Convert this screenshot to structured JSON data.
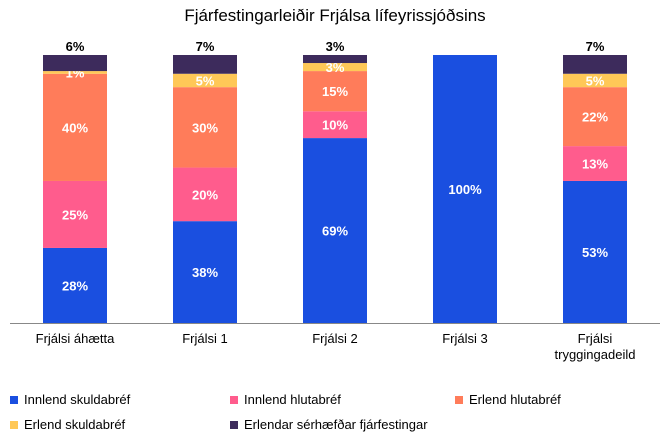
{
  "chart_data": {
    "type": "bar",
    "stacked": true,
    "percent_stacked": true,
    "title": "Fjárfestingarleiðir Frjálsa lífeyrissjóðsins",
    "categories": [
      "Frjálsi áhætta",
      "Frjálsi 1",
      "Frjálsi 2",
      "Frjálsi 3",
      "Frjálsi tryggingadeild"
    ],
    "category_lines": [
      [
        "Frjálsi áhætta"
      ],
      [
        "Frjálsi 1"
      ],
      [
        "Frjálsi 2"
      ],
      [
        "Frjálsi 3"
      ],
      [
        "Frjálsi",
        "tryggingadeild"
      ]
    ],
    "ylim": [
      0,
      100
    ],
    "grid": false,
    "legend_position": "bottom",
    "series": [
      {
        "name": "Innlend skuldabréf",
        "color": "#1a4fe0",
        "values": [
          28,
          38,
          69,
          100,
          53
        ],
        "labels": [
          "28%",
          "38%",
          "69%",
          "100%",
          "53%"
        ]
      },
      {
        "name": "Innlend hlutabréf",
        "color": "#ff5c8d",
        "values": [
          25,
          20,
          10,
          0,
          13
        ],
        "labels": [
          "25%",
          "20%",
          "10%",
          "",
          "13%"
        ]
      },
      {
        "name": "Erlend hlutabréf",
        "color": "#ff7c5a",
        "values": [
          40,
          30,
          15,
          0,
          22
        ],
        "labels": [
          "40%",
          "30%",
          "15%",
          "",
          "22%"
        ]
      },
      {
        "name": "Erlend skuldabréf",
        "color": "#ffc857",
        "values": [
          1,
          5,
          3,
          0,
          5
        ],
        "labels": [
          "1%",
          "5%",
          "3%",
          "",
          "5%"
        ]
      },
      {
        "name": "Erlendar sérhæfðar fjárfestingar",
        "color": "#3d2b5c",
        "values": [
          6,
          7,
          3,
          0,
          7
        ],
        "labels": [
          "6%",
          "7%",
          "3%",
          "",
          "7%"
        ]
      }
    ],
    "label_color": "#ffffff"
  }
}
